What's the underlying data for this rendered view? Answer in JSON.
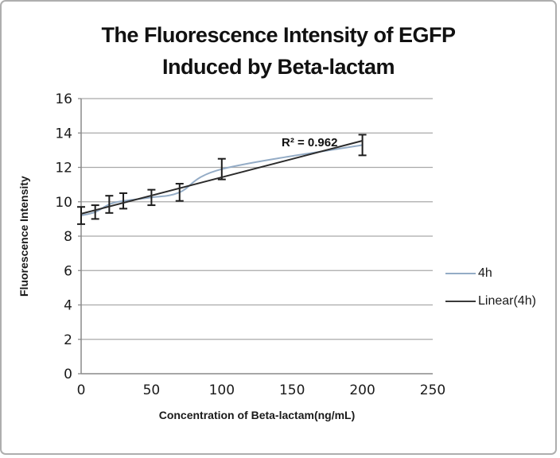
{
  "title": {
    "line1": "The Fluorescence Intensity of EGFP",
    "line2": "Induced by Beta-lactam"
  },
  "chart_data": {
    "type": "line",
    "title": "The Fluorescence Intensity of EGFP Induced by Beta-lactam",
    "xlabel": "Concentration of Beta-lactam(ng/mL)",
    "ylabel": "Fluorescence Intensity",
    "xlim": [
      0,
      250
    ],
    "ylim": [
      0,
      16
    ],
    "x_ticks": [
      0,
      50,
      100,
      150,
      200,
      250
    ],
    "y_ticks": [
      0,
      2,
      4,
      6,
      8,
      10,
      12,
      14,
      16
    ],
    "grid": "horizontal",
    "grid_color": "#a9a9a9",
    "axis_color": "#8a8a8a",
    "tick_label_color": "#1a1a1a",
    "legend_position": "right",
    "annotation": "R² = 0.962",
    "series": [
      {
        "name": "4h",
        "kind": "data",
        "color": "#94acc6",
        "smooth": true,
        "x": [
          0,
          10,
          20,
          30,
          50,
          70,
          100,
          200
        ],
        "values": [
          9.2,
          9.4,
          9.85,
          10.05,
          10.25,
          10.55,
          11.9,
          13.3
        ],
        "errors": [
          0.5,
          0.4,
          0.5,
          0.45,
          0.45,
          0.5,
          0.6,
          0.6
        ],
        "error_color": "#1c1c1c"
      },
      {
        "name": "Linear(4h)",
        "kind": "trendline",
        "color": "#2b2b2b",
        "x": [
          0,
          200
        ],
        "values": [
          9.3,
          13.55
        ],
        "r_squared": 0.962
      }
    ]
  },
  "legend": {
    "items": [
      {
        "label": "4h",
        "color": "#94acc6"
      },
      {
        "label": "Linear(4h)",
        "color": "#3a3a3a"
      }
    ]
  }
}
